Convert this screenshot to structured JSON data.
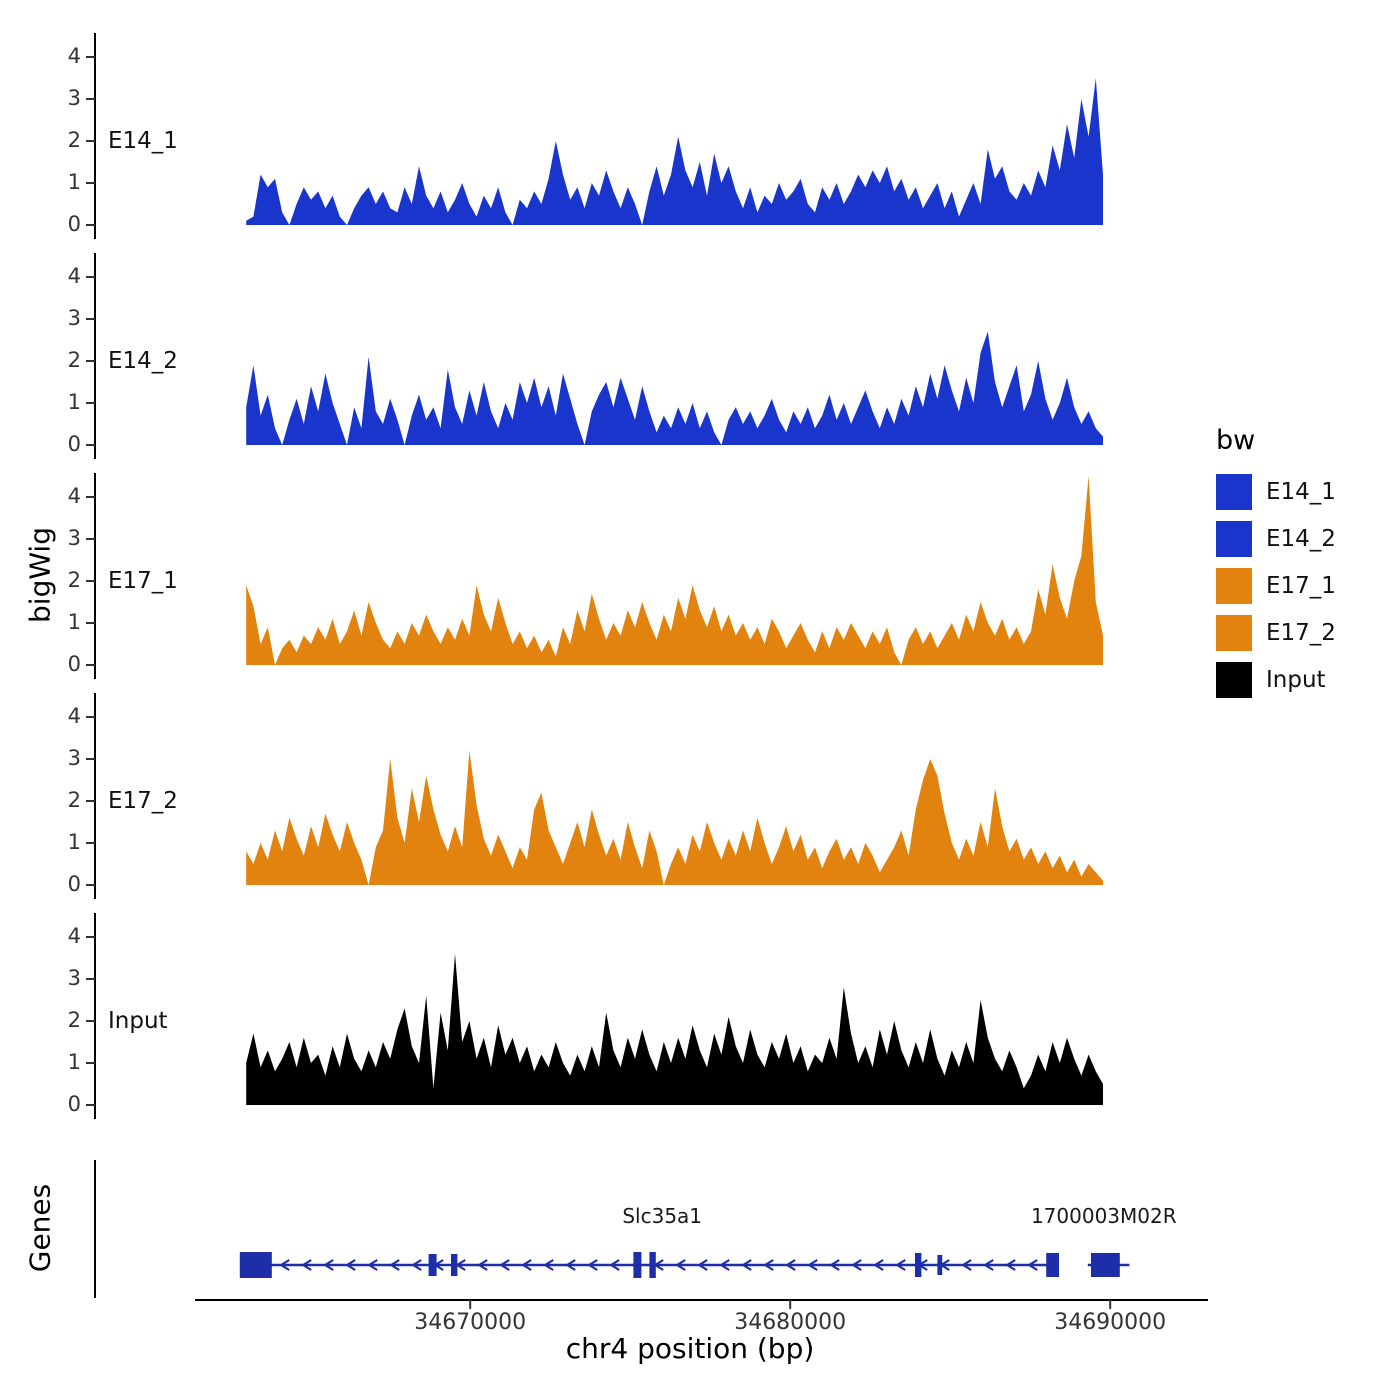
{
  "chart_data": {
    "type": "area",
    "title": "",
    "xlabel": "chr4 position (bp)",
    "ylabel": "bigWig",
    "x_ticks": [
      "34670000",
      "34680000",
      "34690000"
    ],
    "x_tick_values": [
      34670000,
      34680000,
      34690000
    ],
    "x_range_bp": [
      34661400,
      34693000
    ],
    "y_ticks": [
      0,
      1,
      2,
      3,
      4
    ],
    "y_range": [
      0,
      4.7
    ],
    "grid": false,
    "tracks": [
      {
        "name": "E14_1",
        "color": "#1A35CC",
        "x_start": 34663000,
        "x_step": 225,
        "values": [
          0.1,
          0.2,
          1.2,
          0.9,
          1.1,
          0.3,
          0,
          0.5,
          0.9,
          0.6,
          0.8,
          0.4,
          0.7,
          0.2,
          0,
          0.4,
          0.7,
          0.9,
          0.5,
          0.8,
          0.4,
          0.3,
          0.9,
          0.5,
          1.4,
          0.7,
          0.4,
          0.8,
          0.3,
          0.6,
          1.0,
          0.5,
          0.2,
          0.7,
          0.4,
          0.9,
          0.3,
          0,
          0.6,
          0.4,
          0.8,
          0.5,
          1.1,
          2.0,
          1.2,
          0.6,
          0.9,
          0.4,
          1.0,
          0.7,
          1.3,
          0.8,
          0.4,
          0.9,
          0.5,
          0,
          0.8,
          1.4,
          0.7,
          1.2,
          2.1,
          1.3,
          0.9,
          1.5,
          0.7,
          1.7,
          1.0,
          1.4,
          0.8,
          0.4,
          0.9,
          0.3,
          0.7,
          0.5,
          1.0,
          0.6,
          0.8,
          1.1,
          0.5,
          0.3,
          0.9,
          0.6,
          1.0,
          0.5,
          0.8,
          1.2,
          0.9,
          1.3,
          1.0,
          1.4,
          0.8,
          1.1,
          0.6,
          0.9,
          0.4,
          0.7,
          1.0,
          0.4,
          0.8,
          0.2,
          0.6,
          1.0,
          0.5,
          1.8,
          1.1,
          1.4,
          0.8,
          0.6,
          1.0,
          0.7,
          1.3,
          0.9,
          1.9,
          1.3,
          2.4,
          1.6,
          3.0,
          2.1,
          3.5,
          1.2
        ]
      },
      {
        "name": "E14_2",
        "color": "#1A35CC",
        "x_start": 34663000,
        "x_step": 225,
        "values": [
          0.9,
          1.9,
          0.7,
          1.2,
          0.4,
          0,
          0.6,
          1.1,
          0.5,
          1.4,
          0.8,
          1.7,
          1.0,
          0.5,
          0,
          0.9,
          0.4,
          2.1,
          0.8,
          0.5,
          1.1,
          0.6,
          0,
          0.7,
          1.2,
          0.6,
          0.9,
          0.4,
          1.8,
          0.9,
          0.5,
          1.3,
          0.7,
          1.5,
          0.8,
          0.4,
          1.0,
          0.6,
          1.5,
          1.0,
          1.6,
          0.9,
          1.4,
          0.7,
          1.7,
          1.1,
          0.5,
          0,
          0.8,
          1.2,
          1.5,
          0.9,
          1.6,
          1.1,
          0.6,
          1.4,
          0.8,
          0.3,
          0.7,
          0.4,
          0.9,
          0.5,
          1.0,
          0.4,
          0.8,
          0.3,
          0,
          0.6,
          0.9,
          0.5,
          0.8,
          0.4,
          0.7,
          1.1,
          0.6,
          0.3,
          0.8,
          0.5,
          0.9,
          0.4,
          0.7,
          1.2,
          0.6,
          1.0,
          0.5,
          0.9,
          1.3,
          0.8,
          0.4,
          0.9,
          0.5,
          1.1,
          0.7,
          1.4,
          0.9,
          1.7,
          1.1,
          1.9,
          1.3,
          0.8,
          1.6,
          1.0,
          2.2,
          2.7,
          1.5,
          0.9,
          1.4,
          1.9,
          0.8,
          1.2,
          2.0,
          1.1,
          0.6,
          1.0,
          1.6,
          0.9,
          0.5,
          0.8,
          0.4,
          0.2
        ]
      },
      {
        "name": "E17_1",
        "color": "#E2820F",
        "x_start": 34663000,
        "x_step": 225,
        "values": [
          1.9,
          1.4,
          0.5,
          0.9,
          0,
          0.4,
          0.6,
          0.3,
          0.7,
          0.5,
          0.9,
          0.6,
          1.1,
          0.5,
          0.8,
          1.3,
          0.7,
          1.5,
          1.0,
          0.6,
          0.4,
          0.8,
          0.5,
          1.0,
          0.7,
          1.2,
          0.8,
          0.5,
          0.9,
          0.6,
          1.1,
          0.7,
          1.9,
          1.2,
          0.8,
          1.6,
          1.0,
          0.5,
          0.8,
          0.4,
          0.7,
          0.3,
          0.6,
          0.2,
          0.9,
          0.5,
          1.3,
          0.8,
          1.7,
          1.1,
          0.6,
          1.0,
          0.7,
          1.3,
          0.9,
          1.5,
          1.0,
          0.6,
          1.2,
          0.8,
          1.6,
          1.1,
          1.9,
          1.3,
          0.9,
          1.4,
          0.8,
          1.2,
          0.7,
          1.0,
          0.6,
          0.9,
          0.5,
          1.1,
          0.8,
          0.4,
          0.7,
          1.0,
          0.6,
          0.3,
          0.8,
          0.4,
          0.9,
          0.6,
          1.0,
          0.7,
          0.4,
          0.8,
          0.5,
          0.9,
          0.3,
          0,
          0.6,
          0.9,
          0.5,
          0.8,
          0.4,
          0.7,
          1.0,
          0.6,
          1.2,
          0.8,
          1.5,
          1.0,
          0.7,
          1.1,
          0.6,
          0.9,
          0.5,
          0.8,
          1.8,
          1.2,
          2.4,
          1.6,
          1.1,
          2.0,
          2.6,
          4.5,
          1.5,
          0.7
        ]
      },
      {
        "name": "E17_2",
        "color": "#E2820F",
        "x_start": 34663000,
        "x_step": 225,
        "values": [
          0.8,
          0.5,
          1.0,
          0.6,
          1.3,
          0.8,
          1.6,
          1.1,
          0.7,
          1.4,
          0.9,
          1.7,
          1.2,
          0.8,
          1.5,
          1.0,
          0.6,
          0,
          0.9,
          1.3,
          3.0,
          1.6,
          1.0,
          2.3,
          1.5,
          2.6,
          1.8,
          1.2,
          0.8,
          1.4,
          0.9,
          3.2,
          1.9,
          1.1,
          0.7,
          1.2,
          0.8,
          0.4,
          0.9,
          0.6,
          1.8,
          2.2,
          1.3,
          0.9,
          0.5,
          1.0,
          1.5,
          0.9,
          1.8,
          1.2,
          0.7,
          1.1,
          0.6,
          1.5,
          0.9,
          0.4,
          1.3,
          0.8,
          0,
          0.5,
          0.9,
          0.5,
          1.2,
          0.8,
          1.5,
          1.0,
          0.6,
          1.1,
          0.7,
          1.3,
          0.8,
          1.6,
          1.0,
          0.5,
          0.9,
          1.4,
          0.8,
          1.2,
          0.6,
          0.9,
          0.4,
          0.8,
          1.1,
          0.6,
          0.9,
          0.5,
          1.0,
          0.7,
          0.3,
          0.6,
          0.9,
          1.3,
          0.7,
          1.8,
          2.5,
          3.0,
          2.6,
          1.7,
          1.0,
          0.6,
          1.1,
          0.7,
          1.5,
          0.9,
          2.3,
          1.4,
          0.8,
          1.1,
          0.6,
          0.9,
          0.5,
          0.8,
          0.4,
          0.7,
          0.3,
          0.6,
          0.2,
          0.5,
          0.3,
          0.1
        ]
      },
      {
        "name": "Input",
        "color": "#000000",
        "x_start": 34663000,
        "x_step": 225,
        "values": [
          1.0,
          1.7,
          0.9,
          1.3,
          0.8,
          1.1,
          1.5,
          0.9,
          1.6,
          1.0,
          1.2,
          0.7,
          1.4,
          0.9,
          1.7,
          1.1,
          0.8,
          1.3,
          0.9,
          1.5,
          1.1,
          1.8,
          2.3,
          1.4,
          1.0,
          2.6,
          0.4,
          2.2,
          1.3,
          3.6,
          1.5,
          2.0,
          1.1,
          1.6,
          0.9,
          1.9,
          1.2,
          1.6,
          1.0,
          1.4,
          0.8,
          1.2,
          0.9,
          1.5,
          1.0,
          0.7,
          1.2,
          0.8,
          1.4,
          0.9,
          2.2,
          1.3,
          0.9,
          1.6,
          1.1,
          1.8,
          1.2,
          0.8,
          1.5,
          1.0,
          1.6,
          1.1,
          1.9,
          1.3,
          0.9,
          1.7,
          1.2,
          2.1,
          1.4,
          1.0,
          1.8,
          1.2,
          0.9,
          1.5,
          1.1,
          1.7,
          1.0,
          1.4,
          0.8,
          1.2,
          1.0,
          1.6,
          1.1,
          2.8,
          1.7,
          1.0,
          1.4,
          0.9,
          1.8,
          1.2,
          2.0,
          1.3,
          0.9,
          1.5,
          1.0,
          1.8,
          1.1,
          0.7,
          1.3,
          0.9,
          1.5,
          1.0,
          2.5,
          1.6,
          1.1,
          0.8,
          1.3,
          0.9,
          0.4,
          0.7,
          1.2,
          0.8,
          1.5,
          1.0,
          1.6,
          1.1,
          0.7,
          1.2,
          0.8,
          0.5
        ]
      }
    ],
    "genes_panel": {
      "label": "Genes",
      "color": "#1E2DA8",
      "genes": [
        {
          "name": "Slc35a1",
          "strand": "-",
          "line_bp": [
            34663000,
            34688400
          ],
          "label_bp": 34676000,
          "exons": [
            [
              34662800,
              1000,
              26
            ],
            [
              34668700,
              250,
              22
            ],
            [
              34669400,
              200,
              22
            ],
            [
              34675100,
              250,
              26
            ],
            [
              34675600,
              200,
              26
            ],
            [
              34683900,
              200,
              24
            ],
            [
              34684600,
              150,
              20
            ],
            [
              34688000,
              400,
              24
            ]
          ]
        },
        {
          "name": "1700003M02R",
          "strand": "-",
          "line_bp": [
            34689300,
            34690600
          ],
          "label_bp": 34689800,
          "exons": [
            [
              34689400,
              900,
              24
            ]
          ]
        }
      ]
    }
  },
  "legend": {
    "title": "bw",
    "items": [
      {
        "label": "E14_1",
        "color": "#1A35CC"
      },
      {
        "label": "E14_2",
        "color": "#1A35CC"
      },
      {
        "label": "E17_1",
        "color": "#E2820F"
      },
      {
        "label": "E17_2",
        "color": "#E2820F"
      },
      {
        "label": "Input",
        "color": "#000000"
      }
    ]
  }
}
